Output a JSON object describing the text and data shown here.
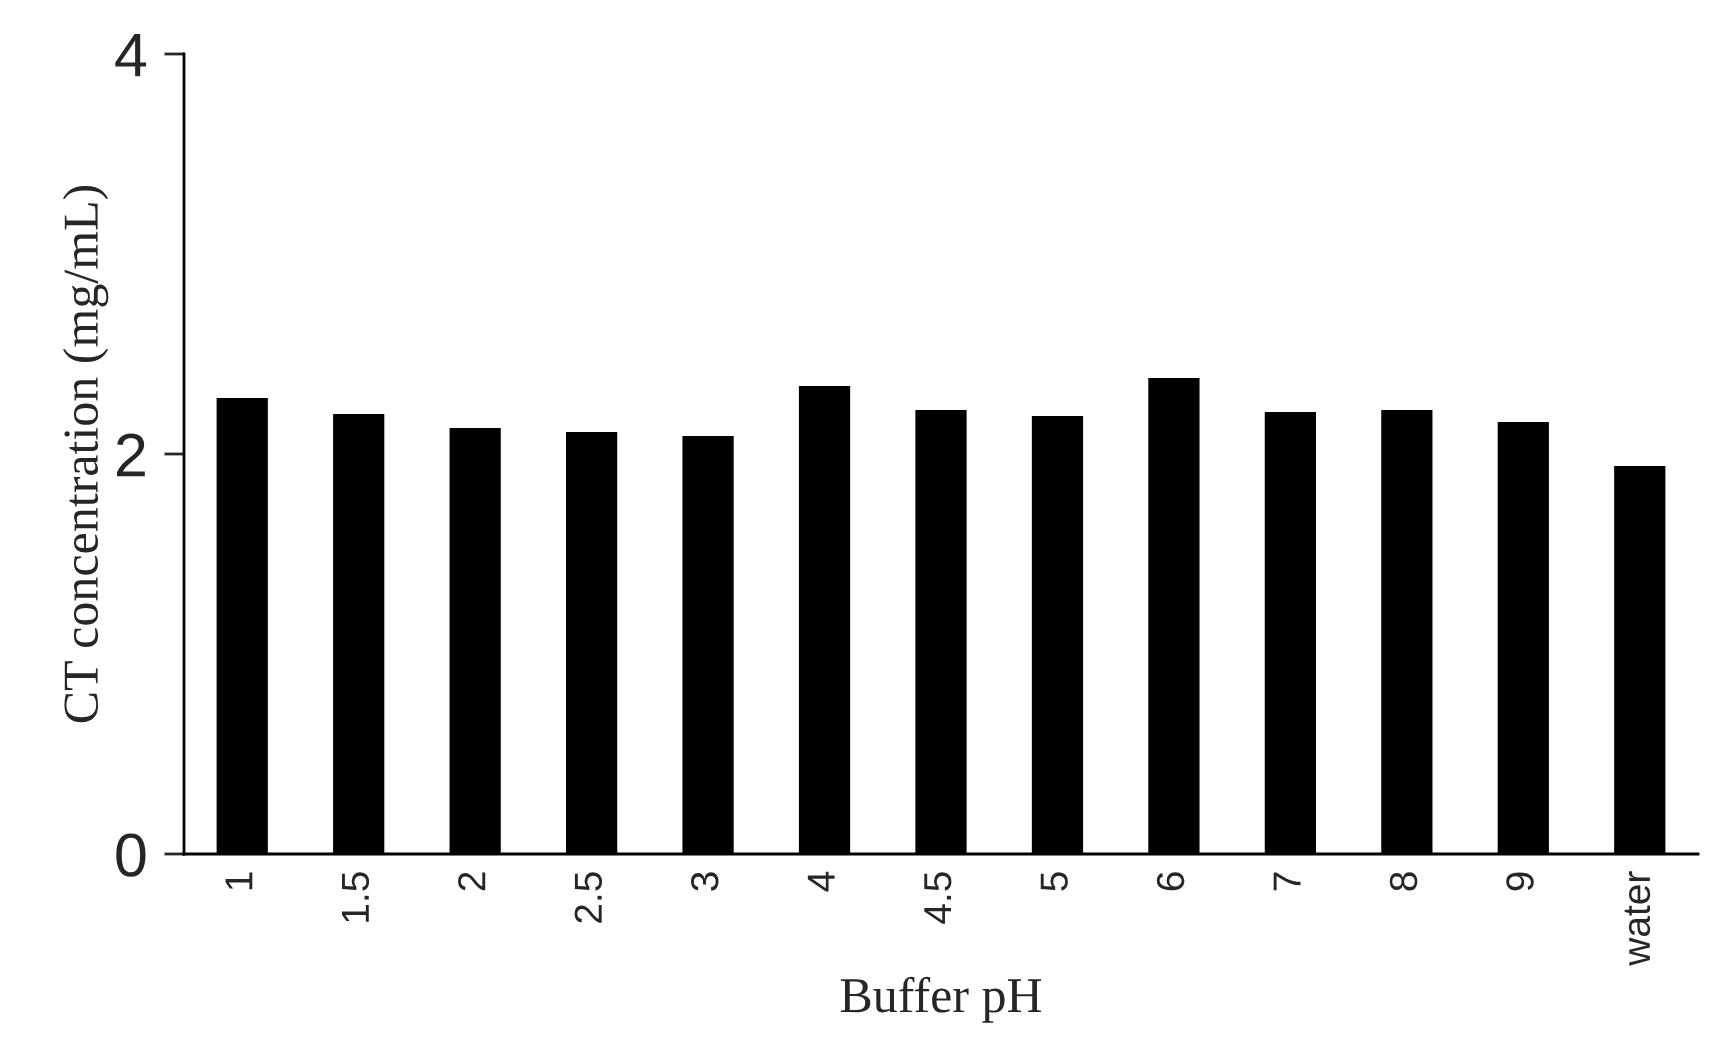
{
  "chart_data": {
    "type": "bar",
    "xlabel": "Buffer pH",
    "ylabel": "CT concentration (mg/mL)",
    "categories": [
      "1",
      "1.5",
      "2",
      "2.5",
      "3",
      "4",
      "4.5",
      "5",
      "6",
      "7",
      "8",
      "9",
      "water"
    ],
    "values": [
      2.28,
      2.2,
      2.13,
      2.11,
      2.09,
      2.34,
      2.22,
      2.19,
      2.38,
      2.21,
      2.22,
      2.16,
      1.94
    ],
    "color": "#000000",
    "ylim": [
      0,
      4
    ],
    "yticks": [
      0,
      2,
      4
    ],
    "grid": false,
    "legend": false
  }
}
